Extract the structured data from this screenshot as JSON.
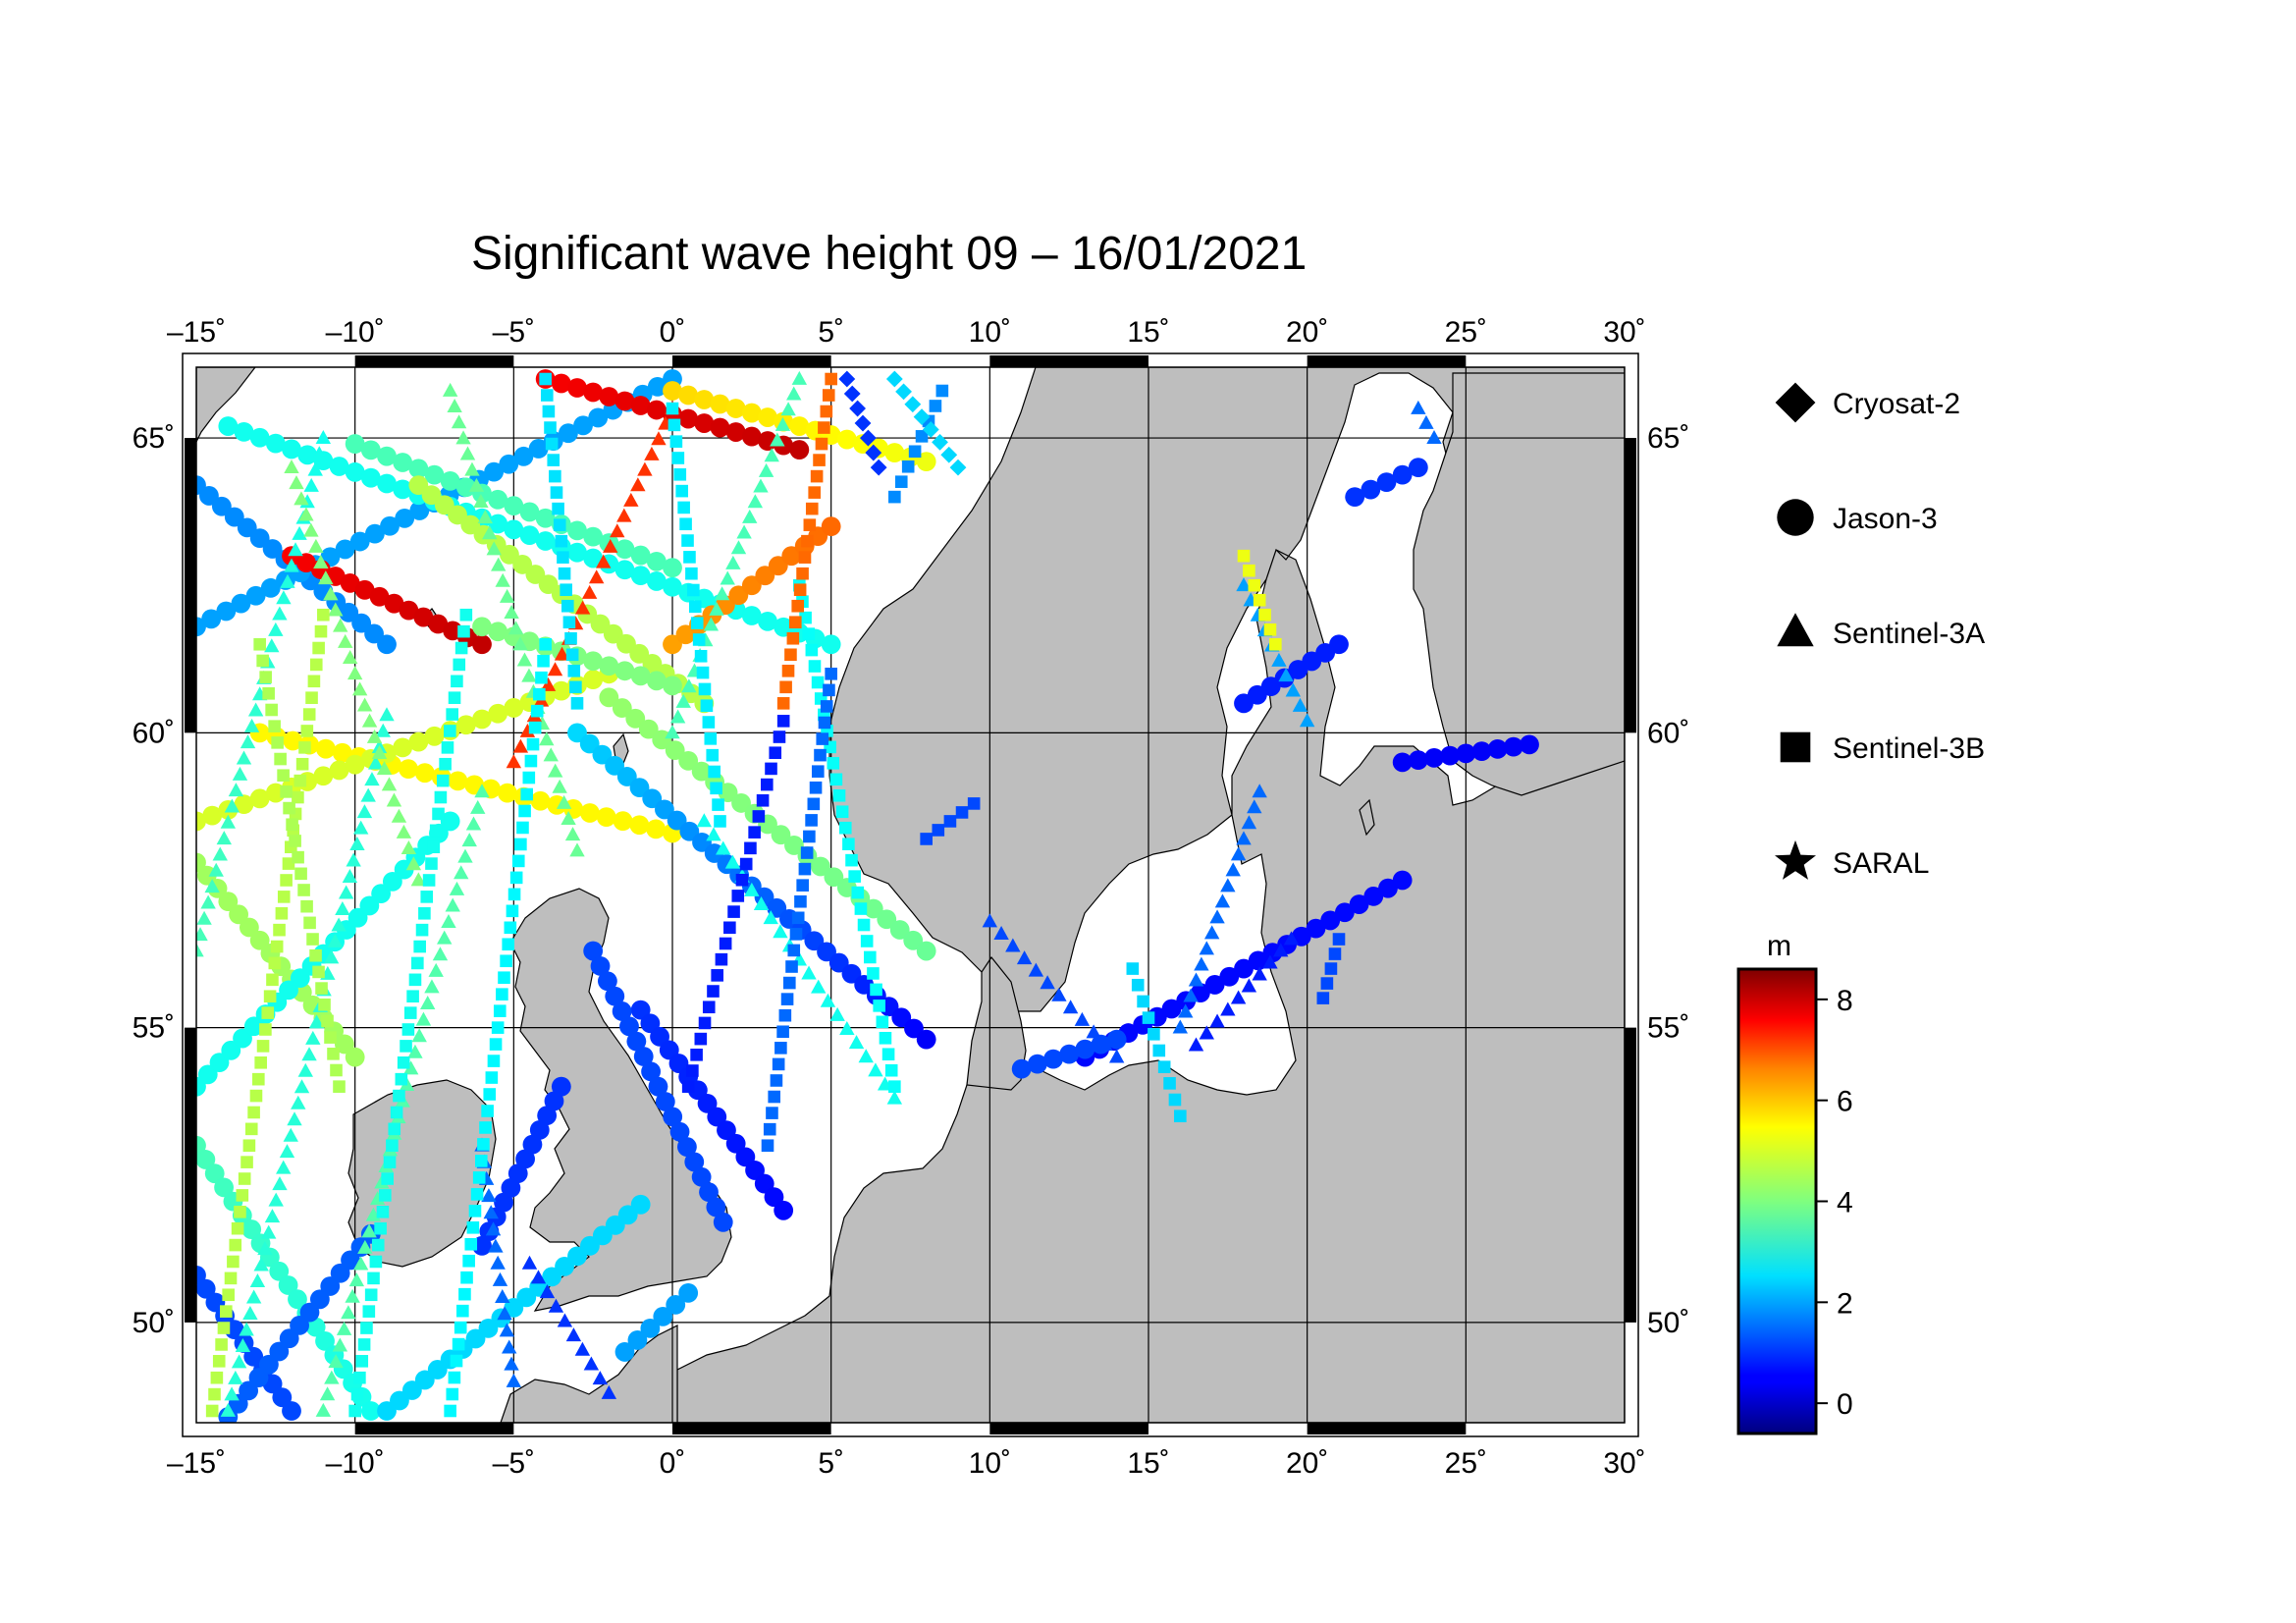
{
  "title": "Significant wave height 09 – 16/01/2021",
  "map": {
    "lon_range": [
      -15,
      30
    ],
    "lat_range": [
      48.3,
      66.2
    ],
    "lon_ticks": [
      "–15˚",
      "–10˚",
      "–5˚",
      "0˚",
      "5˚",
      "10˚",
      "15˚",
      "20˚",
      "25˚",
      "30˚"
    ],
    "lat_ticks": [
      "65˚",
      "60˚",
      "55˚",
      "50˚"
    ],
    "land_color": "#bebebe",
    "sea_color": "#ffffff",
    "grid": true
  },
  "legend": {
    "placement": "right",
    "satellites": [
      {
        "name": "Cryosat-2",
        "symbol": "diamond"
      },
      {
        "name": "Jason-3",
        "symbol": "circle"
      },
      {
        "name": "Sentinel-3A",
        "symbol": "triangle"
      },
      {
        "name": "Sentinel-3B",
        "symbol": "square"
      },
      {
        "name": "SARAL",
        "symbol": "star"
      }
    ]
  },
  "colorbar": {
    "unit": "m",
    "range": [
      -0.6,
      8.6
    ],
    "ticks": [
      "8",
      "6",
      "4",
      "2",
      "0"
    ],
    "colormap": "jet"
  },
  "chart_data": {
    "type": "scatter",
    "title": "Significant wave height 09 – 16/01/2021",
    "xlabel": "",
    "ylabel": "",
    "xlim": [
      -15,
      30
    ],
    "ylim": [
      48.3,
      66.2
    ],
    "value_unit": "m",
    "tracks": [
      {
        "satellite": "Jason-3",
        "from": [
          -15,
          64.2
        ],
        "to": [
          -9,
          61.5
        ],
        "hs": [
          1.8,
          1.8
        ]
      },
      {
        "satellite": "Jason-3",
        "from": [
          -15,
          61.8
        ],
        "to": [
          0,
          66.0
        ],
        "hs": [
          2.0,
          2.0
        ]
      },
      {
        "satellite": "Jason-3",
        "from": [
          -12,
          63.0
        ],
        "to": [
          -6,
          61.5
        ],
        "hs": [
          7.5,
          8.0
        ]
      },
      {
        "satellite": "Jason-3",
        "from": [
          -14,
          65.2
        ],
        "to": [
          5,
          61.5
        ],
        "hs": [
          3.0,
          3.0
        ]
      },
      {
        "satellite": "Jason-3",
        "from": [
          -10,
          64.9
        ],
        "to": [
          0,
          62.8
        ],
        "hs": [
          3.5,
          3.5
        ]
      },
      {
        "satellite": "Jason-3",
        "from": [
          -8,
          64.2
        ],
        "to": [
          1,
          60.5
        ],
        "hs": [
          4.5,
          4.5
        ]
      },
      {
        "satellite": "Jason-3",
        "from": [
          -13,
          60.0
        ],
        "to": [
          0,
          58.3
        ],
        "hs": [
          5.2,
          5.2
        ]
      },
      {
        "satellite": "Jason-3",
        "from": [
          -15,
          58.5
        ],
        "to": [
          -2,
          61.0
        ],
        "hs": [
          4.8,
          4.8
        ]
      },
      {
        "satellite": "Jason-3",
        "from": [
          -2,
          60.6
        ],
        "to": [
          8,
          56.3
        ],
        "hs": [
          4.2,
          3.8
        ]
      },
      {
        "satellite": "Jason-3",
        "from": [
          -3,
          60.0
        ],
        "to": [
          8,
          54.8
        ],
        "hs": [
          2.5,
          0.5
        ]
      },
      {
        "satellite": "Jason-3",
        "from": [
          -15,
          57.8
        ],
        "to": [
          -10,
          54.5
        ],
        "hs": [
          4.3,
          4.3
        ]
      },
      {
        "satellite": "Jason-3",
        "from": [
          -15,
          54.0
        ],
        "to": [
          -7,
          58.5
        ],
        "hs": [
          3.0,
          3.0
        ]
      },
      {
        "satellite": "Jason-3",
        "from": [
          -15,
          50.8
        ],
        "to": [
          -12,
          48.5
        ],
        "hs": [
          1.2,
          1.2
        ]
      },
      {
        "satellite": "Jason-3",
        "from": [
          -15,
          53.0
        ],
        "to": [
          -9.5,
          48.5
        ],
        "hs": [
          3.5,
          3.0
        ]
      },
      {
        "satellite": "Jason-3",
        "from": [
          -14,
          48.4
        ],
        "to": [
          -9.5,
          51.5
        ],
        "hs": [
          1.4,
          1.4
        ]
      },
      {
        "satellite": "Jason-3",
        "from": [
          -6,
          51.3
        ],
        "to": [
          -3.5,
          54.0
        ],
        "hs": [
          1.0,
          1.0
        ]
      },
      {
        "satellite": "Jason-3",
        "from": [
          -9,
          48.5
        ],
        "to": [
          -1,
          52.0
        ],
        "hs": [
          2.5,
          2.5
        ]
      },
      {
        "satellite": "Jason-3",
        "from": [
          -1,
          55.3
        ],
        "to": [
          3.5,
          51.9
        ],
        "hs": [
          1.0,
          0.6
        ]
      },
      {
        "satellite": "Jason-3",
        "from": [
          -2.5,
          56.3
        ],
        "to": [
          1.6,
          51.7
        ],
        "hs": [
          1.2,
          1.2
        ]
      },
      {
        "satellite": "Jason-3",
        "from": [
          -1.5,
          49.5
        ],
        "to": [
          0.5,
          50.5
        ],
        "hs": [
          2.0,
          2.0
        ]
      },
      {
        "satellite": "Jason-3",
        "from": [
          0,
          65.8
        ],
        "to": [
          8,
          64.6
        ],
        "hs": [
          5.5,
          5.0
        ]
      },
      {
        "satellite": "Jason-3",
        "from": [
          -4,
          66.0
        ],
        "to": [
          4,
          64.8
        ],
        "hs": [
          7.5,
          8.0
        ]
      },
      {
        "satellite": "Jason-3",
        "from": [
          0,
          61.5
        ],
        "to": [
          5,
          63.5
        ],
        "hs": [
          6.0,
          6.5
        ]
      },
      {
        "satellite": "Jason-3",
        "from": [
          -6,
          61.8
        ],
        "to": [
          0,
          60.8
        ],
        "hs": [
          4.0,
          4.0
        ]
      },
      {
        "satellite": "Jason-3",
        "from": [
          13,
          54.5
        ],
        "to": [
          23,
          57.5
        ],
        "hs": [
          0.6,
          0.6
        ]
      },
      {
        "satellite": "Jason-3",
        "from": [
          18,
          60.5
        ],
        "to": [
          21,
          61.5
        ],
        "hs": [
          0.8,
          0.8
        ]
      },
      {
        "satellite": "Jason-3",
        "from": [
          23,
          59.5
        ],
        "to": [
          27,
          59.8
        ],
        "hs": [
          0.5,
          0.5
        ]
      },
      {
        "satellite": "Jason-3",
        "from": [
          21.5,
          64.0
        ],
        "to": [
          23.5,
          64.5
        ],
        "hs": [
          1.0,
          1.0
        ]
      },
      {
        "satellite": "Jason-3",
        "from": [
          11,
          54.3
        ],
        "to": [
          14,
          54.8
        ],
        "hs": [
          1.2,
          1.2
        ]
      },
      {
        "satellite": "Sentinel-3A",
        "from": [
          -15,
          56.3
        ],
        "to": [
          -11,
          65.0
        ],
        "hs": [
          3.5,
          3.0
        ]
      },
      {
        "satellite": "Sentinel-3A",
        "from": [
          -14,
          48.5
        ],
        "to": [
          -9,
          60.3
        ],
        "hs": [
          3.2,
          3.2
        ]
      },
      {
        "satellite": "Sentinel-3A",
        "from": [
          -11,
          48.5
        ],
        "to": [
          -6,
          59.0
        ],
        "hs": [
          3.6,
          3.6
        ]
      },
      {
        "satellite": "Sentinel-3A",
        "from": [
          -12,
          64.5
        ],
        "to": [
          -8,
          57.5
        ],
        "hs": [
          4.0,
          4.0
        ]
      },
      {
        "satellite": "Sentinel-3A",
        "from": [
          -7,
          65.8
        ],
        "to": [
          -3,
          58.0
        ],
        "hs": [
          3.8,
          3.8
        ]
      },
      {
        "satellite": "Sentinel-3A",
        "from": [
          -5,
          59.5
        ],
        "to": [
          0,
          65.5
        ],
        "hs": [
          7.0,
          7.0
        ]
      },
      {
        "satellite": "Sentinel-3A",
        "from": [
          0,
          60.0
        ],
        "to": [
          4,
          66.0
        ],
        "hs": [
          3.5,
          3.5
        ]
      },
      {
        "satellite": "Sentinel-3A",
        "from": [
          1,
          58.5
        ],
        "to": [
          7,
          53.8
        ],
        "hs": [
          3.0,
          3.0
        ]
      },
      {
        "satellite": "Sentinel-3A",
        "from": [
          -4.5,
          51.0
        ],
        "to": [
          -2,
          48.8
        ],
        "hs": [
          1.0,
          1.0
        ]
      },
      {
        "satellite": "Sentinel-3A",
        "from": [
          -6,
          53.0
        ],
        "to": [
          -5,
          49.0
        ],
        "hs": [
          1.5,
          1.5
        ]
      },
      {
        "satellite": "Sentinel-3A",
        "from": [
          10,
          56.8
        ],
        "to": [
          14,
          54.5
        ],
        "hs": [
          1.2,
          1.2
        ]
      },
      {
        "satellite": "Sentinel-3A",
        "from": [
          16,
          55.0
        ],
        "to": [
          18.5,
          59.0
        ],
        "hs": [
          1.5,
          1.5
        ]
      },
      {
        "satellite": "Sentinel-3A",
        "from": [
          16.5,
          54.7
        ],
        "to": [
          19.5,
          56.5
        ],
        "hs": [
          0.8,
          0.8
        ]
      },
      {
        "satellite": "Sentinel-3A",
        "from": [
          18,
          62.5
        ],
        "to": [
          20,
          60.2
        ],
        "hs": [
          2.0,
          2.0
        ]
      },
      {
        "satellite": "Sentinel-3A",
        "from": [
          23.5,
          65.5
        ],
        "to": [
          24,
          65.0
        ],
        "hs": [
          1.5,
          1.5
        ]
      },
      {
        "satellite": "Sentinel-3B",
        "from": [
          -14.5,
          48.5
        ],
        "to": [
          -11,
          62.0
        ],
        "hs": [
          4.5,
          4.5
        ]
      },
      {
        "satellite": "Sentinel-3B",
        "from": [
          -13,
          61.5
        ],
        "to": [
          -10.5,
          54.0
        ],
        "hs": [
          4.4,
          4.4
        ]
      },
      {
        "satellite": "Sentinel-3B",
        "from": [
          -10,
          48.5
        ],
        "to": [
          -6.5,
          62.0
        ],
        "hs": [
          3.0,
          3.0
        ]
      },
      {
        "satellite": "Sentinel-3B",
        "from": [
          -7,
          48.5
        ],
        "to": [
          -4,
          61.5
        ],
        "hs": [
          2.8,
          2.8
        ]
      },
      {
        "satellite": "Sentinel-3B",
        "from": [
          -4,
          66.0
        ],
        "to": [
          -3,
          60.5
        ],
        "hs": [
          2.6,
          2.6
        ]
      },
      {
        "satellite": "Sentinel-3B",
        "from": [
          0,
          65.5
        ],
        "to": [
          1.5,
          58.5
        ],
        "hs": [
          2.7,
          2.7
        ]
      },
      {
        "satellite": "Sentinel-3B",
        "from": [
          4,
          62.5
        ],
        "to": [
          7,
          54.0
        ],
        "hs": [
          2.9,
          2.9
        ]
      },
      {
        "satellite": "Sentinel-3B",
        "from": [
          5,
          66.0
        ],
        "to": [
          3.5,
          60.5
        ],
        "hs": [
          6.5,
          6.5
        ]
      },
      {
        "satellite": "Sentinel-3B",
        "from": [
          3.5,
          60.2
        ],
        "to": [
          0.5,
          54.0
        ],
        "hs": [
          0.8,
          0.8
        ]
      },
      {
        "satellite": "Sentinel-3B",
        "from": [
          5,
          61.0
        ],
        "to": [
          3,
          53.0
        ],
        "hs": [
          1.5,
          1.5
        ]
      },
      {
        "satellite": "Sentinel-3B",
        "from": [
          7,
          64.0
        ],
        "to": [
          8.5,
          65.8
        ],
        "hs": [
          1.8,
          1.8
        ]
      },
      {
        "satellite": "Sentinel-3B",
        "from": [
          8,
          58.2
        ],
        "to": [
          9.5,
          58.8
        ],
        "hs": [
          1.2,
          1.2
        ]
      },
      {
        "satellite": "Sentinel-3B",
        "from": [
          14.5,
          56.0
        ],
        "to": [
          16,
          53.5
        ],
        "hs": [
          2.5,
          2.5
        ]
      },
      {
        "satellite": "Sentinel-3B",
        "from": [
          19,
          61.5
        ],
        "to": [
          18,
          63.0
        ],
        "hs": [
          5.0,
          5.0
        ]
      },
      {
        "satellite": "Sentinel-3B",
        "from": [
          20.5,
          55.5
        ],
        "to": [
          21,
          56.5
        ],
        "hs": [
          1.2,
          1.2
        ]
      },
      {
        "satellite": "Cryosat-2",
        "from": [
          5.5,
          66.0
        ],
        "to": [
          6.5,
          64.5
        ],
        "hs": [
          1.0,
          1.0
        ]
      },
      {
        "satellite": "Cryosat-2",
        "from": [
          7,
          66.0
        ],
        "to": [
          9,
          64.5
        ],
        "hs": [
          2.5,
          2.5
        ]
      }
    ]
  }
}
